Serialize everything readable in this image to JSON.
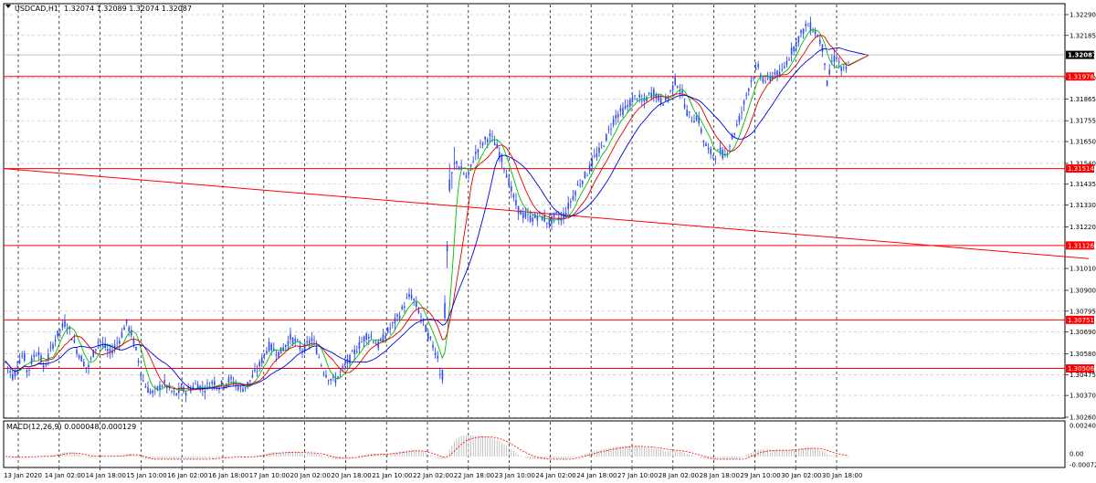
{
  "symbol_info": {
    "label": "USDCAD,H1",
    "ohlc": "1.32074 1.32089 1.32074 1.32087"
  },
  "macd_info": {
    "label": "MACD(12,26,9) 0.000048 0.000129"
  },
  "colors": {
    "candle": "#2f4ef0",
    "level_line": "#ff0000",
    "ma_fast": "#00c000",
    "ma_mid": "#e00000",
    "ma_slow": "#0000e0",
    "grid": "#b8b8b8",
    "macd_hist": "#b4b4b4",
    "macd_signal": "#ff0000"
  },
  "chart_data": [
    {
      "type": "candlestick",
      "title": "USDCAD,H1",
      "ylim": [
        1.3026,
        1.3229
      ],
      "y_ticks": [
        "1.32290",
        "1.32185",
        "1.31970",
        "1.31865",
        "1.31755",
        "1.31650",
        "1.31540",
        "1.31435",
        "1.31330",
        "1.31220",
        "1.31010",
        "1.30900",
        "1.30795",
        "1.30690",
        "1.30580",
        "1.30475",
        "1.30370",
        "1.30260"
      ],
      "x_ticks": [
        "13 Jan 2020",
        "14 Jan 02:00",
        "14 Jan 18:00",
        "15 Jan 10:00",
        "16 Jan 02:00",
        "16 Jan 18:00",
        "17 Jan 10:00",
        "20 Jan 02:00",
        "20 Jan 18:00",
        "21 Jan 10:00",
        "22 Jan 02:00",
        "22 Jan 18:00",
        "23 Jan 10:00",
        "24 Jan 02:00",
        "24 Jan 18:00",
        "27 Jan 10:00",
        "28 Jan 02:00",
        "28 Jan 18:00",
        "29 Jan 10:00",
        "30 Jan 02:00",
        "30 Jan 18:00"
      ],
      "current_price": "1.32087",
      "levels": [
        {
          "label": "1.31978",
          "value": 1.31978
        },
        {
          "label": "1.31514",
          "value": 1.31514
        },
        {
          "label": "1.31126",
          "value": 1.31126
        },
        {
          "label": "1.30751",
          "value": 1.30751
        },
        {
          "label": "1.30506",
          "value": 1.30506
        }
      ],
      "trendline": {
        "start": 1.31514,
        "end": 1.3106
      },
      "price_path": [
        [
          0,
          1.306
        ],
        [
          10,
          1.305
        ],
        [
          15,
          1.3046
        ],
        [
          20,
          1.3054
        ],
        [
          26,
          1.3058
        ],
        [
          30,
          1.3048
        ],
        [
          36,
          1.3056
        ],
        [
          42,
          1.306
        ],
        [
          48,
          1.305
        ],
        [
          54,
          1.3058
        ],
        [
          60,
          1.3065
        ],
        [
          66,
          1.307
        ],
        [
          72,
          1.3074
        ],
        [
          78,
          1.3068
        ],
        [
          84,
          1.306
        ],
        [
          90,
          1.3055
        ],
        [
          96,
          1.305
        ],
        [
          102,
          1.3058
        ],
        [
          108,
          1.3065
        ],
        [
          114,
          1.3062
        ],
        [
          120,
          1.3058
        ],
        [
          126,
          1.3062
        ],
        [
          132,
          1.3066
        ],
        [
          138,
          1.3074
        ],
        [
          144,
          1.3068
        ],
        [
          150,
          1.3058
        ],
        [
          156,
          1.3045
        ],
        [
          162,
          1.304
        ],
        [
          168,
          1.3038
        ],
        [
          174,
          1.3041
        ],
        [
          180,
          1.3043
        ],
        [
          186,
          1.304
        ],
        [
          192,
          1.3037
        ],
        [
          198,
          1.304
        ],
        [
          204,
          1.3039
        ],
        [
          210,
          1.3041
        ],
        [
          216,
          1.3043
        ],
        [
          222,
          1.304
        ],
        [
          228,
          1.3042
        ],
        [
          234,
          1.3044
        ],
        [
          240,
          1.3042
        ],
        [
          246,
          1.3043
        ],
        [
          252,
          1.3045
        ],
        [
          258,
          1.3043
        ],
        [
          264,
          1.304
        ],
        [
          270,
          1.3042
        ],
        [
          276,
          1.3046
        ],
        [
          282,
          1.305
        ],
        [
          288,
          1.3056
        ],
        [
          294,
          1.3062
        ],
        [
          300,
          1.306
        ],
        [
          306,
          1.3058
        ],
        [
          312,
          1.3062
        ],
        [
          318,
          1.3066
        ],
        [
          324,
          1.3064
        ],
        [
          330,
          1.306
        ],
        [
          336,
          1.3062
        ],
        [
          342,
          1.3066
        ],
        [
          348,
          1.3058
        ],
        [
          354,
          1.305
        ],
        [
          360,
          1.3046
        ],
        [
          366,
          1.3044
        ],
        [
          372,
          1.3048
        ],
        [
          378,
          1.3052
        ],
        [
          384,
          1.3056
        ],
        [
          390,
          1.306
        ],
        [
          396,
          1.3064
        ],
        [
          402,
          1.3068
        ],
        [
          408,
          1.3066
        ],
        [
          414,
          1.3062
        ],
        [
          420,
          1.3066
        ],
        [
          426,
          1.307
        ],
        [
          432,
          1.3074
        ],
        [
          438,
          1.3078
        ],
        [
          444,
          1.3084
        ],
        [
          450,
          1.3088
        ],
        [
          456,
          1.3082
        ],
        [
          462,
          1.3076
        ],
        [
          468,
          1.3068
        ],
        [
          474,
          1.3062
        ],
        [
          480,
          1.3056
        ],
        [
          484,
          1.3044
        ],
        [
          488,
          1.309
        ],
        [
          492,
          1.314
        ],
        [
          496,
          1.315
        ],
        [
          500,
          1.3155
        ],
        [
          506,
          1.315
        ],
        [
          512,
          1.3146
        ],
        [
          518,
          1.3156
        ],
        [
          524,
          1.3162
        ],
        [
          530,
          1.3165
        ],
        [
          536,
          1.3168
        ],
        [
          542,
          1.3164
        ],
        [
          548,
          1.3158
        ],
        [
          554,
          1.315
        ],
        [
          560,
          1.314
        ],
        [
          566,
          1.3132
        ],
        [
          572,
          1.3128
        ],
        [
          578,
          1.3127
        ],
        [
          584,
          1.3126
        ],
        [
          590,
          1.3128
        ],
        [
          596,
          1.3126
        ],
        [
          602,
          1.3124
        ],
        [
          608,
          1.3128
        ],
        [
          614,
          1.3126
        ],
        [
          620,
          1.313
        ],
        [
          626,
          1.3136
        ],
        [
          632,
          1.3142
        ],
        [
          638,
          1.3146
        ],
        [
          644,
          1.315
        ],
        [
          650,
          1.3156
        ],
        [
          656,
          1.316
        ],
        [
          662,
          1.3165
        ],
        [
          668,
          1.3172
        ],
        [
          674,
          1.3178
        ],
        [
          680,
          1.318
        ],
        [
          686,
          1.3182
        ],
        [
          692,
          1.3186
        ],
        [
          698,
          1.3188
        ],
        [
          704,
          1.3184
        ],
        [
          710,
          1.3188
        ],
        [
          716,
          1.319
        ],
        [
          722,
          1.3186
        ],
        [
          728,
          1.3185
        ],
        [
          734,
          1.319
        ],
        [
          740,
          1.3196
        ],
        [
          746,
          1.319
        ],
        [
          752,
          1.318
        ],
        [
          758,
          1.3176
        ],
        [
          764,
          1.3178
        ],
        [
          770,
          1.3166
        ],
        [
          776,
          1.316
        ],
        [
          782,
          1.3158
        ],
        [
          788,
          1.316
        ],
        [
          794,
          1.3158
        ],
        [
          800,
          1.3165
        ],
        [
          806,
          1.3172
        ],
        [
          812,
          1.318
        ],
        [
          818,
          1.319
        ],
        [
          824,
          1.3198
        ],
        [
          830,
          1.3202
        ],
        [
          836,
          1.3196
        ],
        [
          842,
          1.3196
        ],
        [
          848,
          1.32
        ],
        [
          854,
          1.3198
        ],
        [
          860,
          1.3204
        ],
        [
          866,
          1.321
        ],
        [
          872,
          1.3215
        ],
        [
          878,
          1.322
        ],
        [
          884,
          1.3224
        ],
        [
          890,
          1.3222
        ],
        [
          896,
          1.3218
        ],
        [
          902,
          1.321
        ],
        [
          906,
          1.3192
        ],
        [
          910,
          1.3205
        ],
        [
          916,
          1.3208
        ],
        [
          922,
          1.32
        ],
        [
          928,
          1.3202
        ],
        [
          932,
          1.3208
        ]
      ]
    },
    {
      "type": "macd",
      "title": "MACD(12,26,9)",
      "ylim": [
        -0.00728,
        0.00401
      ],
      "y_ticks": [
        "0.002401",
        "0.00",
        "-0.000728"
      ],
      "main": 4.8e-05,
      "signal": 0.000129
    }
  ]
}
